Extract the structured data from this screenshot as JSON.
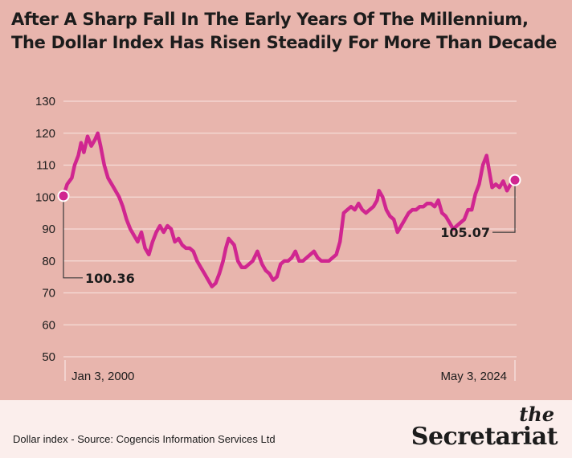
{
  "title_lines": [
    "After A Sharp Fall In The Early Years Of The Millennium,",
    "The Dollar Index Has Risen Steadily For More Than Decade"
  ],
  "footer": {
    "source": "Dollar index - Source: Cogencis Information Services Ltd",
    "logo_small": "the",
    "logo_main": "Secretariat"
  },
  "colors": {
    "background": "#e8b5ad",
    "line": "#d02690",
    "grid": "#f6dcd8",
    "footer_bg": "#fbeeec",
    "text": "#1c1c1c"
  },
  "chart_data": {
    "type": "line",
    "ylim": [
      50,
      130
    ],
    "yticks": [
      130,
      120,
      110,
      100,
      90,
      80,
      70,
      60,
      50
    ],
    "grid": true,
    "x_start_label": "Jan 3, 2000",
    "x_end_label": "May 3, 2024",
    "xlim": [
      2000.0,
      2024.33
    ],
    "series": [
      {
        "x": [
          2000.0,
          2000.2,
          2000.45,
          2000.6,
          2000.8,
          2000.95,
          2001.1,
          2001.3,
          2001.5,
          2001.7,
          2001.85,
          2002.0,
          2002.2,
          2002.4,
          2002.6,
          2002.8,
          2003.0,
          2003.2,
          2003.4,
          2003.6,
          2003.8,
          2004.0,
          2004.2,
          2004.4,
          2004.6,
          2004.8,
          2005.0,
          2005.2,
          2005.4,
          2005.6,
          2005.8,
          2006.0,
          2006.2,
          2006.4,
          2006.6,
          2006.8,
          2007.0,
          2007.2,
          2007.4,
          2007.6,
          2007.8,
          2008.0,
          2008.2,
          2008.4,
          2008.6,
          2008.75,
          2008.9,
          2009.05,
          2009.2,
          2009.4,
          2009.6,
          2009.8,
          2010.0,
          2010.2,
          2010.45,
          2010.7,
          2010.9,
          2011.1,
          2011.3,
          2011.5,
          2011.7,
          2011.9,
          2012.1,
          2012.3,
          2012.5,
          2012.7,
          2012.9,
          2013.1,
          2013.3,
          2013.5,
          2013.7,
          2013.9,
          2014.1,
          2014.3,
          2014.5,
          2014.7,
          2014.9,
          2015.1,
          2015.3,
          2015.5,
          2015.7,
          2015.9,
          2016.1,
          2016.3,
          2016.5,
          2016.7,
          2016.9,
          2017.0,
          2017.2,
          2017.4,
          2017.6,
          2017.8,
          2018.0,
          2018.2,
          2018.4,
          2018.6,
          2018.8,
          2019.0,
          2019.2,
          2019.4,
          2019.6,
          2019.8,
          2020.0,
          2020.2,
          2020.4,
          2020.6,
          2020.8,
          2021.0,
          2021.2,
          2021.4,
          2021.6,
          2021.8,
          2022.0,
          2022.2,
          2022.4,
          2022.6,
          2022.8,
          2022.95,
          2023.1,
          2023.3,
          2023.5,
          2023.7,
          2023.9,
          2024.1,
          2024.33
        ],
        "y": [
          100.36,
          104,
          106,
          110,
          113,
          117,
          114,
          119,
          116,
          118,
          120,
          116,
          110,
          106,
          104,
          102,
          100,
          97,
          93,
          90,
          88,
          86,
          89,
          84,
          82,
          86,
          89,
          91,
          89,
          91,
          90,
          86,
          87,
          85,
          84,
          84,
          83,
          80,
          78,
          76,
          74,
          72,
          73,
          76,
          80,
          84,
          87,
          86,
          85,
          80,
          78,
          78,
          79,
          80,
          83,
          79,
          77,
          76,
          74,
          75,
          79,
          80,
          80,
          81,
          83,
          80,
          80,
          81,
          82,
          83,
          81,
          80,
          80,
          80,
          81,
          82,
          86,
          95,
          96,
          97,
          96,
          98,
          96,
          95,
          96,
          97,
          99,
          102,
          100,
          96,
          94,
          93,
          89,
          91,
          93,
          95,
          96,
          96,
          97,
          97,
          98,
          98,
          97,
          99,
          95,
          94,
          92,
          90,
          91,
          92,
          93,
          96,
          96,
          101,
          104,
          110,
          113,
          108,
          103,
          104,
          103,
          105,
          102,
          104,
          105.07
        ]
      }
    ],
    "annotations": [
      {
        "text": "100.36",
        "x": 2000.0,
        "y": 100.36
      },
      {
        "text": "105.07",
        "x": 2024.33,
        "y": 105.07
      }
    ]
  }
}
